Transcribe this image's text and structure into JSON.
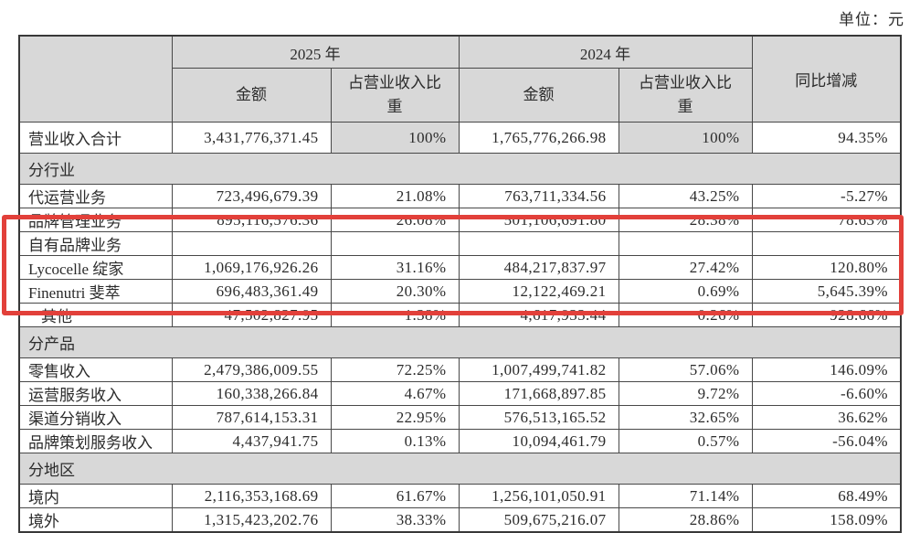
{
  "unit_label": "单位：元",
  "colors": {
    "section_gray": "#d8d8d8",
    "highlight_red": "#e2403a",
    "border_dark": "#484848",
    "text": "#2b2b2b"
  },
  "table": {
    "headers": {
      "year_2025": "2025 年",
      "year_2024": "2024 年",
      "amount": "金额",
      "pct_of_revenue": "占营业收入比重",
      "yoy": "同比增减"
    },
    "rows": [
      {
        "type": "data",
        "tall": true,
        "shaded": true,
        "label": "营业收入合计",
        "a2025": "3,431,776,371.45",
        "p2025": "100%",
        "a2024": "1,765,776,266.98",
        "p2024": "100%",
        "yoy": "94.35%"
      },
      {
        "type": "section",
        "label": "分行业"
      },
      {
        "type": "data",
        "label": "代运营业务",
        "a2025": "723,496,679.39",
        "p2025": "21.08%",
        "a2024": "763,711,334.56",
        "p2024": "43.25%",
        "yoy": "-5.27%"
      },
      {
        "type": "data",
        "label": "品牌管理业务",
        "a2025": "895,116,576.36",
        "p2025": "26.08%",
        "a2024": "501,106,691.80",
        "p2024": "28.38%",
        "yoy": "78.63%"
      },
      {
        "type": "data",
        "label": "自有品牌业务",
        "a2025": "",
        "p2025": "",
        "a2024": "",
        "p2024": "",
        "yoy": ""
      },
      {
        "type": "data",
        "label": "Lycocelle 绽家",
        "a2025": "1,069,176,926.26",
        "p2025": "31.16%",
        "a2024": "484,217,837.97",
        "p2024": "27.42%",
        "yoy": "120.80%"
      },
      {
        "type": "data",
        "label": "Finenutri 斐萃",
        "a2025": "696,483,361.49",
        "p2025": "20.30%",
        "a2024": "12,122,469.21",
        "p2024": "0.69%",
        "yoy": "5,645.39%"
      },
      {
        "type": "data",
        "indent": true,
        "label": "其他",
        "a2025": "47,502,827.95",
        "p2025": "1.38%",
        "a2024": "4,617,933.44",
        "p2024": "0.26%",
        "yoy": "928.66%"
      },
      {
        "type": "section",
        "label": "分产品"
      },
      {
        "type": "data",
        "label": "零售收入",
        "a2025": "2,479,386,009.55",
        "p2025": "72.25%",
        "a2024": "1,007,499,741.82",
        "p2024": "57.06%",
        "yoy": "146.09%"
      },
      {
        "type": "data",
        "label": "运营服务收入",
        "a2025": "160,338,266.84",
        "p2025": "4.67%",
        "a2024": "171,668,897.85",
        "p2024": "9.72%",
        "yoy": "-6.60%"
      },
      {
        "type": "data",
        "label": "渠道分销收入",
        "a2025": "787,614,153.31",
        "p2025": "22.95%",
        "a2024": "576,513,165.52",
        "p2024": "32.65%",
        "yoy": "36.62%"
      },
      {
        "type": "data",
        "label": "品牌策划服务收入",
        "a2025": "4,437,941.75",
        "p2025": "0.13%",
        "a2024": "10,094,461.79",
        "p2024": "0.57%",
        "yoy": "-56.04%"
      },
      {
        "type": "section",
        "label": "分地区"
      },
      {
        "type": "data",
        "label": "境内",
        "a2025": "2,116,353,168.69",
        "p2025": "61.67%",
        "a2024": "1,256,101,050.91",
        "p2024": "71.14%",
        "yoy": "68.49%"
      },
      {
        "type": "data",
        "label": "境外",
        "a2025": "1,315,423,202.76",
        "p2025": "38.33%",
        "a2024": "509,675,216.07",
        "p2024": "28.86%",
        "yoy": "158.09%"
      }
    ]
  },
  "highlight_box": {
    "enclosed_rows": [
      "自有品牌业务",
      "Lycocelle 绽家",
      "Finenutri 斐萃",
      "其他"
    ]
  }
}
